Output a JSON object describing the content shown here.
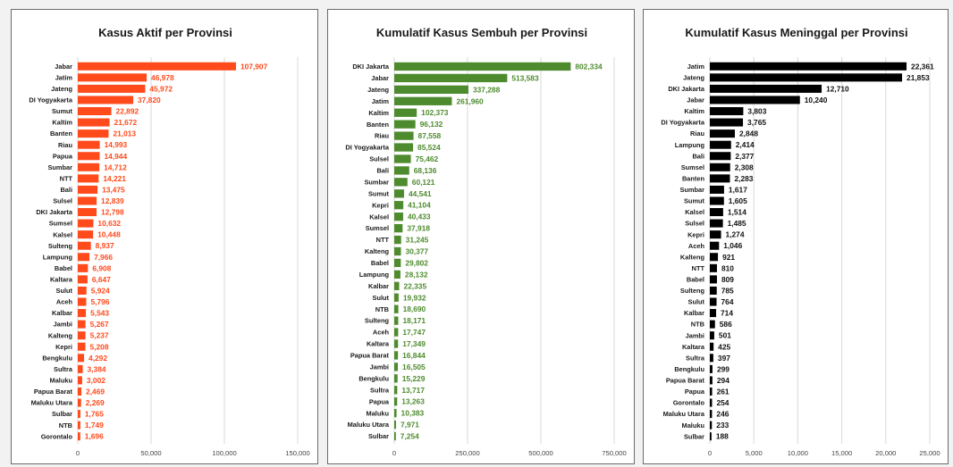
{
  "chart_data": [
    {
      "type": "bar",
      "orientation": "horizontal",
      "title": "Kasus Aktif per Provinsi",
      "color": "#ff4a1c",
      "label_color": "#ff4a1c",
      "xlim": [
        0,
        150000
      ],
      "xticks": [
        "0",
        "50,000",
        "100,000",
        "150,000"
      ],
      "grid": true,
      "categories": [
        "Jabar",
        "Jatim",
        "Jateng",
        "DI Yogyakarta",
        "Sumut",
        "Kaltim",
        "Banten",
        "Riau",
        "Papua",
        "Sumbar",
        "NTT",
        "Bali",
        "Sulsel",
        "DKI Jakarta",
        "Sumsel",
        "Kalsel",
        "Sulteng",
        "Lampung",
        "Babel",
        "Kaltara",
        "Sulut",
        "Aceh",
        "Kalbar",
        "Jambi",
        "Kalteng",
        "Kepri",
        "Bengkulu",
        "Sultra",
        "Maluku",
        "Papua Barat",
        "Maluku Utara",
        "Sulbar",
        "NTB",
        "Gorontalo"
      ],
      "values": [
        107907,
        46978,
        45972,
        37820,
        22892,
        21672,
        21013,
        14993,
        14944,
        14712,
        14221,
        13475,
        12839,
        12798,
        10632,
        10448,
        8937,
        7966,
        6908,
        6647,
        5924,
        5796,
        5543,
        5267,
        5237,
        5208,
        4292,
        3384,
        3002,
        2469,
        2269,
        1765,
        1749,
        1696
      ],
      "labels": [
        "107,907",
        "46,978",
        "45,972",
        "37,820",
        "22,892",
        "21,672",
        "21,013",
        "14,993",
        "14,944",
        "14,712",
        "14,221",
        "13,475",
        "12,839",
        "12,798",
        "10,632",
        "10,448",
        "8,937",
        "7,966",
        "6,908",
        "6,647",
        "5,924",
        "5,796",
        "5,543",
        "5,267",
        "5,237",
        "5,208",
        "4,292",
        "3,384",
        "3,002",
        "2,469",
        "2,269",
        "1,765",
        "1,749",
        "1,696"
      ]
    },
    {
      "type": "bar",
      "orientation": "horizontal",
      "title": "Kumulatif Kasus Sembuh per Provinsi",
      "color": "#4e8b2e",
      "label_color": "#4e8b2e",
      "xlim": [
        0,
        1000000
      ],
      "xticks": [
        "0",
        "250,000",
        "500,000",
        "750,000"
      ],
      "grid": true,
      "categories": [
        "DKI Jakarta",
        "Jabar",
        "Jateng",
        "Jatim",
        "Kaltim",
        "Banten",
        "Riau",
        "DI Yogyakarta",
        "Sulsel",
        "Bali",
        "Sumbar",
        "Sumut",
        "Kepri",
        "Kalsel",
        "Sumsel",
        "NTT",
        "Kalteng",
        "Babel",
        "Lampung",
        "Kalbar",
        "Sulut",
        "NTB",
        "Sulteng",
        "Aceh",
        "Kaltara",
        "Papua Barat",
        "Jambi",
        "Bengkulu",
        "Sultra",
        "Papua",
        "Maluku",
        "Maluku Utara",
        "Sulbar"
      ],
      "values": [
        802334,
        513583,
        337288,
        261960,
        102373,
        96132,
        87558,
        85524,
        75462,
        68136,
        60121,
        44541,
        41104,
        40433,
        37918,
        31245,
        30377,
        29802,
        28132,
        22335,
        19932,
        18690,
        18171,
        17747,
        17349,
        16844,
        16505,
        15229,
        13717,
        13263,
        10383,
        7971,
        7254
      ],
      "labels": [
        "802,334",
        "513,583",
        "337,288",
        "261,960",
        "102,373",
        "96,132",
        "87,558",
        "85,524",
        "75,462",
        "68,136",
        "60,121",
        "44,541",
        "41,104",
        "40,433",
        "37,918",
        "31,245",
        "30,377",
        "29,802",
        "28,132",
        "22,335",
        "19,932",
        "18,690",
        "18,171",
        "17,747",
        "17,349",
        "16,844",
        "16,505",
        "15,229",
        "13,717",
        "13,263",
        "10,383",
        "7,971",
        "7,254"
      ]
    },
    {
      "type": "bar",
      "orientation": "horizontal",
      "title": "Kumulatif Kasus Meninggal per Provinsi",
      "color": "#000000",
      "label_color": "#111111",
      "xlim": [
        0,
        25000
      ],
      "xticks": [
        "0",
        "5,000",
        "10,000",
        "15,000",
        "20,000",
        "25,000"
      ],
      "grid": true,
      "categories": [
        "Jatim",
        "Jateng",
        "DKI Jakarta",
        "Jabar",
        "Kaltim",
        "DI Yogyakarta",
        "Riau",
        "Lampung",
        "Bali",
        "Sumsel",
        "Banten",
        "Sumbar",
        "Sumut",
        "Kalsel",
        "Sulsel",
        "Kepri",
        "Aceh",
        "Kalteng",
        "NTT",
        "Babel",
        "Sulteng",
        "Sulut",
        "Kalbar",
        "NTB",
        "Jambi",
        "Kaltara",
        "Sultra",
        "Bengkulu",
        "Papua Barat",
        "Papua",
        "Gorontalo",
        "Maluku Utara",
        "Maluku",
        "Sulbar"
      ],
      "values": [
        22361,
        21853,
        12710,
        10240,
        3803,
        3765,
        2848,
        2414,
        2377,
        2308,
        2283,
        1617,
        1605,
        1514,
        1485,
        1274,
        1046,
        921,
        810,
        809,
        785,
        764,
        714,
        586,
        501,
        425,
        397,
        299,
        294,
        261,
        254,
        246,
        233,
        188
      ],
      "labels": [
        "22,361",
        "21,853",
        "12,710",
        "10,240",
        "3,803",
        "3,765",
        "2,848",
        "2,414",
        "2,377",
        "2,308",
        "2,283",
        "1,617",
        "1,605",
        "1,514",
        "1,485",
        "1,274",
        "1,046",
        "921",
        "810",
        "809",
        "785",
        "764",
        "714",
        "586",
        "501",
        "425",
        "397",
        "299",
        "294",
        "261",
        "254",
        "246",
        "233",
        "188"
      ]
    }
  ]
}
